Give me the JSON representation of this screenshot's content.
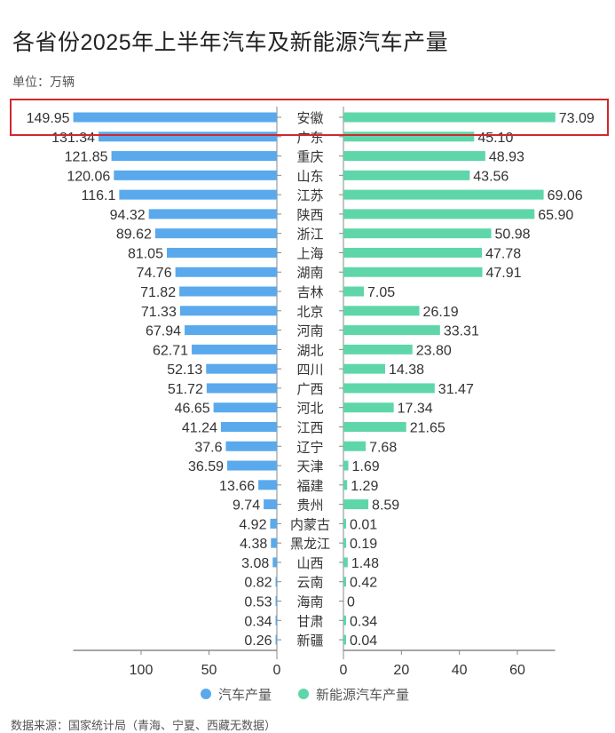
{
  "title": "各省份2025年上半年汽车及新能源汽车产量",
  "unit_label": "单位：万辆",
  "source_note": "数据来源：国家统计局（青海、宁夏、西藏无数据）",
  "chart_data": {
    "type": "bar",
    "orientation": "horizontal-butterfly",
    "categories": [
      "安徽",
      "广东",
      "重庆",
      "山东",
      "江苏",
      "陕西",
      "浙江",
      "上海",
      "湖南",
      "吉林",
      "北京",
      "河南",
      "湖北",
      "四川",
      "广西",
      "河北",
      "江西",
      "辽宁",
      "天津",
      "福建",
      "贵州",
      "内蒙古",
      "黑龙江",
      "山西",
      "云南",
      "海南",
      "甘肃",
      "新疆"
    ],
    "series": [
      {
        "name": "汽车产量",
        "color": "#5aa9ec",
        "side": "left",
        "values": [
          149.95,
          131.34,
          121.85,
          120.06,
          116.1,
          94.32,
          89.62,
          81.05,
          74.76,
          71.82,
          71.33,
          67.94,
          62.71,
          52.13,
          51.72,
          46.65,
          41.24,
          37.6,
          36.59,
          13.66,
          9.74,
          4.92,
          4.38,
          3.08,
          0.82,
          0.53,
          0.34,
          0.26
        ],
        "labels": [
          "149.95",
          "131.34",
          "121.85",
          "120.06",
          "116.1",
          "94.32",
          "89.62",
          "81.05",
          "74.76",
          "71.82",
          "71.33",
          "67.94",
          "62.71",
          "52.13",
          "51.72",
          "46.65",
          "41.24",
          "37.6",
          "36.59",
          "13.66",
          "9.74",
          "4.92",
          "4.38",
          "3.08",
          "0.82",
          "0.53",
          "0.34",
          "0.26"
        ],
        "xlim": [
          0,
          150
        ],
        "ticks": [
          100,
          50,
          0
        ]
      },
      {
        "name": "新能源汽车产量",
        "color": "#5fd6a9",
        "side": "right",
        "values": [
          73.09,
          45.1,
          48.93,
          43.56,
          69.06,
          65.9,
          50.98,
          47.78,
          47.91,
          7.05,
          26.19,
          33.31,
          23.8,
          14.38,
          31.47,
          17.34,
          21.65,
          7.68,
          1.69,
          1.29,
          8.59,
          0.01,
          0.19,
          1.48,
          0.42,
          0,
          0.34,
          0.04
        ],
        "labels": [
          "73.09",
          "45.10",
          "48.93",
          "43.56",
          "69.06",
          "65.90",
          "50.98",
          "47.78",
          "47.91",
          "7.05",
          "26.19",
          "33.31",
          "23.80",
          "14.38",
          "31.47",
          "17.34",
          "21.65",
          "7.68",
          "1.69",
          "1.29",
          "8.59",
          "0.01",
          "0.19",
          "1.48",
          "0.42",
          "0",
          "0.34",
          "0.04"
        ],
        "xlim": [
          0,
          73
        ],
        "ticks": [
          0,
          20,
          40,
          60
        ]
      }
    ],
    "highlight": {
      "category": "安徽",
      "color": "#d0282e"
    },
    "legend_position": "bottom-center",
    "grid": false
  }
}
